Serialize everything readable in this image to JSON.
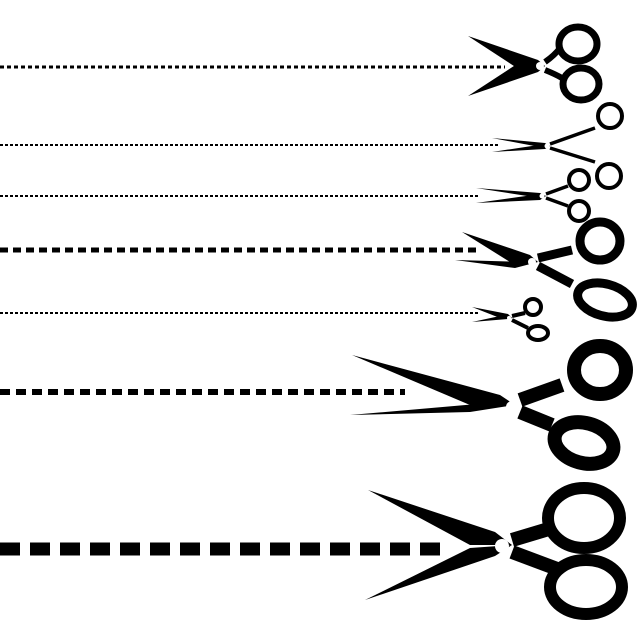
{
  "colors": {
    "background": "#ffffff",
    "ink": "#000000"
  },
  "rows": [
    {
      "icon": "scissors-icon",
      "style": "fine-dotted"
    },
    {
      "icon": "surgical-scissors-icon",
      "style": "fine-dotted"
    },
    {
      "icon": "surgical-scissors-icon",
      "style": "fine-dotted"
    },
    {
      "icon": "scissors-icon",
      "style": "medium-dashed"
    },
    {
      "icon": "small-scissors-icon",
      "style": "fine-dotted"
    },
    {
      "icon": "large-scissors-icon",
      "style": "medium-dashed"
    },
    {
      "icon": "large-scissors-icon",
      "style": "heavy-dashed"
    }
  ]
}
